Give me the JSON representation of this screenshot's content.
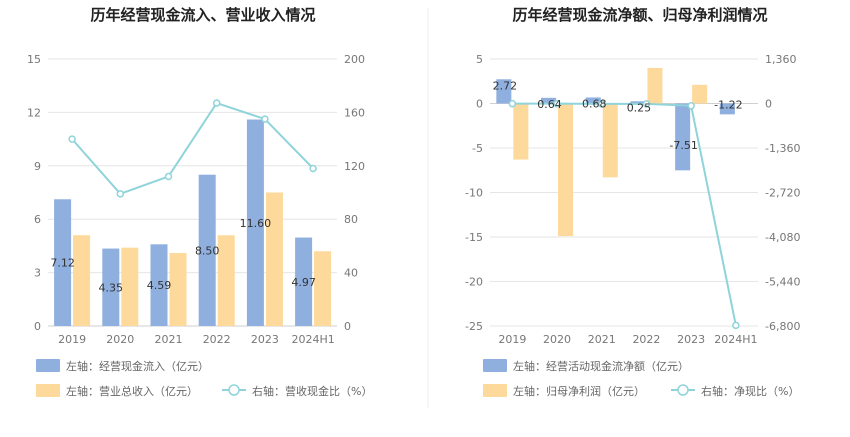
{
  "chart_data": [
    {
      "type": "bar",
      "title": "历年经营现金流入、营业收入情况",
      "categories": [
        "2019",
        "2020",
        "2021",
        "2022",
        "2023",
        "2024H1"
      ],
      "left_axis": {
        "ticks": [
          "0",
          "3",
          "6",
          "9",
          "12",
          "15"
        ],
        "range": [
          0,
          15
        ]
      },
      "right_axis": {
        "ticks": [
          "0",
          "40",
          "80",
          "120",
          "160",
          "200"
        ],
        "range": [
          0,
          200
        ]
      },
      "series": [
        {
          "name": "左轴：经营现金流入（亿元）",
          "axis": "left",
          "kind": "bar",
          "color": "#8fafdf",
          "values": [
            7.12,
            4.35,
            4.59,
            8.5,
            11.6,
            4.97
          ],
          "labels": [
            "7.12",
            "4.35",
            "4.59",
            "8.50",
            "11.60",
            "4.97"
          ]
        },
        {
          "name": "左轴：营业总收入（亿元）",
          "axis": "left",
          "kind": "bar",
          "color": "#fdd99b",
          "values": [
            5.1,
            4.4,
            4.1,
            5.1,
            7.5,
            4.2
          ]
        },
        {
          "name": "右轴：营收现金比（%）",
          "axis": "right",
          "kind": "line",
          "color": "#8fd4da",
          "values": [
            140,
            99,
            112,
            167,
            155,
            118
          ]
        }
      ]
    },
    {
      "type": "bar",
      "title": "历年经营现金流净额、归母净利润情况",
      "categories": [
        "2019",
        "2020",
        "2021",
        "2022",
        "2023",
        "2024H1"
      ],
      "left_axis": {
        "ticks": [
          "5",
          "0",
          "-5",
          "-10",
          "-15",
          "-20",
          "-25"
        ],
        "range": [
          -25,
          5
        ]
      },
      "right_axis": {
        "ticks": [
          "1,360",
          "0",
          "-1,360",
          "-2,720",
          "-4,080",
          "-5,440",
          "-6,800"
        ],
        "range": [
          -6800,
          1360
        ]
      },
      "series": [
        {
          "name": "左轴：经营活动现金流净额（亿元）",
          "axis": "left",
          "kind": "bar",
          "color": "#8fafdf",
          "values": [
            2.72,
            0.64,
            0.68,
            0.25,
            -7.51,
            -1.22
          ],
          "labels": [
            "2.72",
            "0.64",
            "0.68",
            "0.25",
            "-7.51",
            "-1.22"
          ]
        },
        {
          "name": "左轴：归母净利润（亿元）",
          "axis": "left",
          "kind": "bar",
          "color": "#fdd99b",
          "values": [
            -6.3,
            -14.9,
            -8.3,
            4.0,
            2.1,
            0
          ]
        },
        {
          "name": "右轴：净现比（%）",
          "axis": "right",
          "kind": "line",
          "color": "#8fd4da",
          "values": [
            -5,
            -5,
            -10,
            -10,
            -70,
            -6780
          ]
        }
      ]
    }
  ]
}
